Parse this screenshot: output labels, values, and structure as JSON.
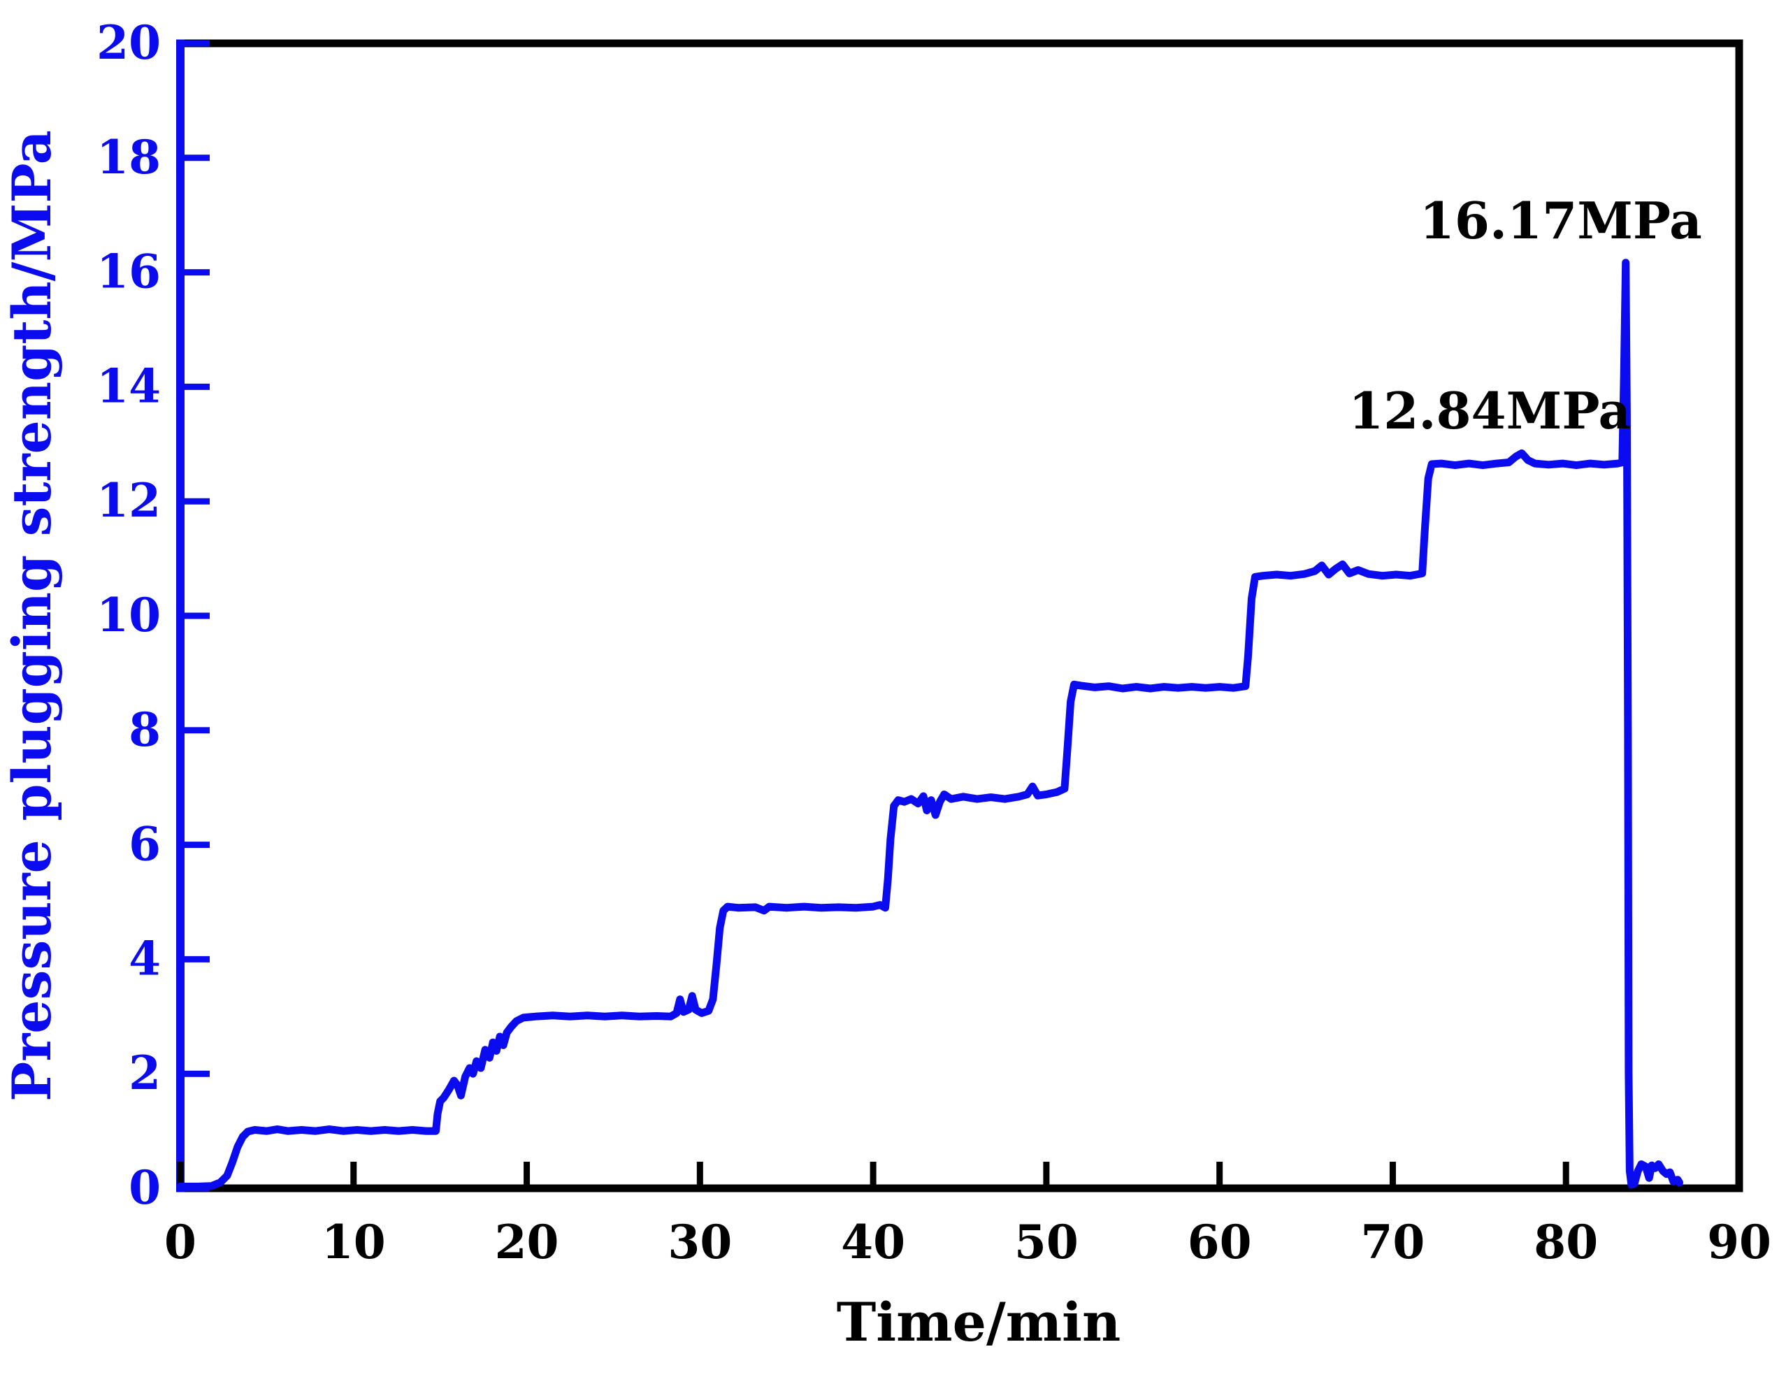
{
  "figure": {
    "background": "#ffffff",
    "frame_color": "#000000",
    "left_axis_color": "#0b0bf0"
  },
  "chart_data": {
    "type": "line",
    "title": "",
    "xlabel": "Time/min",
    "ylabel": "Pressure plugging strength/MPa",
    "xlim": [
      0,
      90
    ],
    "ylim": [
      0,
      20
    ],
    "xticks": [
      0,
      10,
      20,
      30,
      40,
      50,
      60,
      70,
      80,
      90
    ],
    "yticks": [
      0,
      2,
      4,
      6,
      8,
      10,
      12,
      14,
      16,
      18,
      20
    ],
    "grid": false,
    "legend": "none",
    "line_color": "#0b0bf0",
    "x_tick_label_color": "#000000",
    "y_tick_label_color": "#0b0bf0",
    "annotations": [
      {
        "id": "peak",
        "text": "16.17MPa",
        "t": 79.7,
        "p": 16.9,
        "color": "#000000"
      },
      {
        "id": "stage",
        "text": "12.84MPa",
        "t": 75.6,
        "p": 13.58,
        "color": "#000000"
      }
    ],
    "series": [
      {
        "name": "pressure",
        "color": "#0b0bf0",
        "points": [
          [
            0,
            0.03
          ],
          [
            1.0,
            0.03
          ],
          [
            1.8,
            0.04
          ],
          [
            2.3,
            0.1
          ],
          [
            2.7,
            0.22
          ],
          [
            3.0,
            0.45
          ],
          [
            3.3,
            0.72
          ],
          [
            3.6,
            0.9
          ],
          [
            3.9,
            0.99
          ],
          [
            4.3,
            1.02
          ],
          [
            5,
            1.0
          ],
          [
            5.6,
            1.03
          ],
          [
            6.2,
            1.0
          ],
          [
            7,
            1.02
          ],
          [
            7.8,
            1.0
          ],
          [
            8.6,
            1.03
          ],
          [
            9.4,
            1.0
          ],
          [
            10.2,
            1.02
          ],
          [
            11,
            1.0
          ],
          [
            11.8,
            1.02
          ],
          [
            12.6,
            1.0
          ],
          [
            13.4,
            1.02
          ],
          [
            14.2,
            1.0
          ],
          [
            14.75,
            1.0
          ],
          [
            14.85,
            1.3
          ],
          [
            15.0,
            1.52
          ],
          [
            15.2,
            1.58
          ],
          [
            15.5,
            1.72
          ],
          [
            15.8,
            1.88
          ],
          [
            16.0,
            1.8
          ],
          [
            16.2,
            1.62
          ],
          [
            16.45,
            1.95
          ],
          [
            16.7,
            2.1
          ],
          [
            16.9,
            2.0
          ],
          [
            17.1,
            2.22
          ],
          [
            17.35,
            2.1
          ],
          [
            17.6,
            2.42
          ],
          [
            17.85,
            2.28
          ],
          [
            18.05,
            2.55
          ],
          [
            18.25,
            2.4
          ],
          [
            18.45,
            2.65
          ],
          [
            18.65,
            2.5
          ],
          [
            18.85,
            2.72
          ],
          [
            19.1,
            2.82
          ],
          [
            19.4,
            2.92
          ],
          [
            19.8,
            2.98
          ],
          [
            20.5,
            3.0
          ],
          [
            21.5,
            3.02
          ],
          [
            22.5,
            3.0
          ],
          [
            23.5,
            3.02
          ],
          [
            24.5,
            3.0
          ],
          [
            25.5,
            3.02
          ],
          [
            26.5,
            3.0
          ],
          [
            27.5,
            3.01
          ],
          [
            28.3,
            3.0
          ],
          [
            28.65,
            3.06
          ],
          [
            28.85,
            3.3
          ],
          [
            29.05,
            3.08
          ],
          [
            29.35,
            3.12
          ],
          [
            29.55,
            3.36
          ],
          [
            29.75,
            3.12
          ],
          [
            30.1,
            3.06
          ],
          [
            30.5,
            3.1
          ],
          [
            30.75,
            3.3
          ],
          [
            30.95,
            3.9
          ],
          [
            31.15,
            4.55
          ],
          [
            31.35,
            4.85
          ],
          [
            31.6,
            4.92
          ],
          [
            32.2,
            4.9
          ],
          [
            33.2,
            4.91
          ],
          [
            33.7,
            4.85
          ],
          [
            34,
            4.92
          ],
          [
            35,
            4.9
          ],
          [
            36,
            4.92
          ],
          [
            37,
            4.9
          ],
          [
            38,
            4.91
          ],
          [
            39,
            4.9
          ],
          [
            40,
            4.92
          ],
          [
            40.4,
            4.95
          ],
          [
            40.7,
            4.9
          ],
          [
            40.85,
            5.4
          ],
          [
            41.0,
            6.1
          ],
          [
            41.2,
            6.68
          ],
          [
            41.45,
            6.78
          ],
          [
            41.8,
            6.75
          ],
          [
            42.2,
            6.8
          ],
          [
            42.6,
            6.72
          ],
          [
            42.9,
            6.85
          ],
          [
            43.1,
            6.6
          ],
          [
            43.35,
            6.78
          ],
          [
            43.6,
            6.52
          ],
          [
            43.85,
            6.75
          ],
          [
            44.1,
            6.88
          ],
          [
            44.5,
            6.8
          ],
          [
            45.2,
            6.84
          ],
          [
            46,
            6.8
          ],
          [
            46.8,
            6.83
          ],
          [
            47.6,
            6.8
          ],
          [
            48.4,
            6.84
          ],
          [
            48.9,
            6.88
          ],
          [
            49.2,
            7.02
          ],
          [
            49.5,
            6.86
          ],
          [
            50,
            6.88
          ],
          [
            50.6,
            6.92
          ],
          [
            51.05,
            6.98
          ],
          [
            51.2,
            7.6
          ],
          [
            51.4,
            8.5
          ],
          [
            51.6,
            8.8
          ],
          [
            52,
            8.78
          ],
          [
            52.8,
            8.75
          ],
          [
            53.6,
            8.77
          ],
          [
            54.4,
            8.73
          ],
          [
            55.2,
            8.76
          ],
          [
            56,
            8.73
          ],
          [
            56.8,
            8.76
          ],
          [
            57.6,
            8.74
          ],
          [
            58.4,
            8.76
          ],
          [
            59.2,
            8.74
          ],
          [
            60,
            8.76
          ],
          [
            60.8,
            8.74
          ],
          [
            61.5,
            8.77
          ],
          [
            61.65,
            9.3
          ],
          [
            61.85,
            10.3
          ],
          [
            62.05,
            10.68
          ],
          [
            62.5,
            10.7
          ],
          [
            63.3,
            10.72
          ],
          [
            64.1,
            10.7
          ],
          [
            64.9,
            10.73
          ],
          [
            65.5,
            10.78
          ],
          [
            65.9,
            10.88
          ],
          [
            66.3,
            10.72
          ],
          [
            66.7,
            10.82
          ],
          [
            67.1,
            10.9
          ],
          [
            67.5,
            10.74
          ],
          [
            68,
            10.8
          ],
          [
            68.6,
            10.73
          ],
          [
            69.4,
            10.7
          ],
          [
            70.2,
            10.72
          ],
          [
            71,
            10.7
          ],
          [
            71.7,
            10.74
          ],
          [
            71.85,
            11.5
          ],
          [
            72.05,
            12.4
          ],
          [
            72.25,
            12.65
          ],
          [
            72.8,
            12.66
          ],
          [
            73.6,
            12.63
          ],
          [
            74.4,
            12.66
          ],
          [
            75.2,
            12.63
          ],
          [
            76,
            12.66
          ],
          [
            76.7,
            12.68
          ],
          [
            77.1,
            12.78
          ],
          [
            77.45,
            12.84
          ],
          [
            77.8,
            12.72
          ],
          [
            78.2,
            12.66
          ],
          [
            79,
            12.64
          ],
          [
            79.8,
            12.66
          ],
          [
            80.6,
            12.63
          ],
          [
            81.4,
            12.66
          ],
          [
            82.2,
            12.64
          ],
          [
            83,
            12.66
          ],
          [
            83.25,
            12.68
          ],
          [
            83.35,
            14.2
          ],
          [
            83.45,
            16.17
          ],
          [
            83.52,
            13.5
          ],
          [
            83.58,
            8.0
          ],
          [
            83.62,
            2.0
          ],
          [
            83.68,
            0.3
          ],
          [
            83.78,
            0.06
          ],
          [
            83.95,
            0.08
          ],
          [
            84.15,
            0.3
          ],
          [
            84.35,
            0.42
          ],
          [
            84.6,
            0.38
          ],
          [
            84.8,
            0.18
          ],
          [
            84.95,
            0.4
          ],
          [
            85.15,
            0.35
          ],
          [
            85.35,
            0.42
          ],
          [
            85.6,
            0.3
          ],
          [
            85.8,
            0.25
          ],
          [
            86.0,
            0.28
          ],
          [
            86.2,
            0.12
          ],
          [
            86.45,
            0.15
          ],
          [
            86.55,
            0.1
          ]
        ]
      }
    ]
  }
}
